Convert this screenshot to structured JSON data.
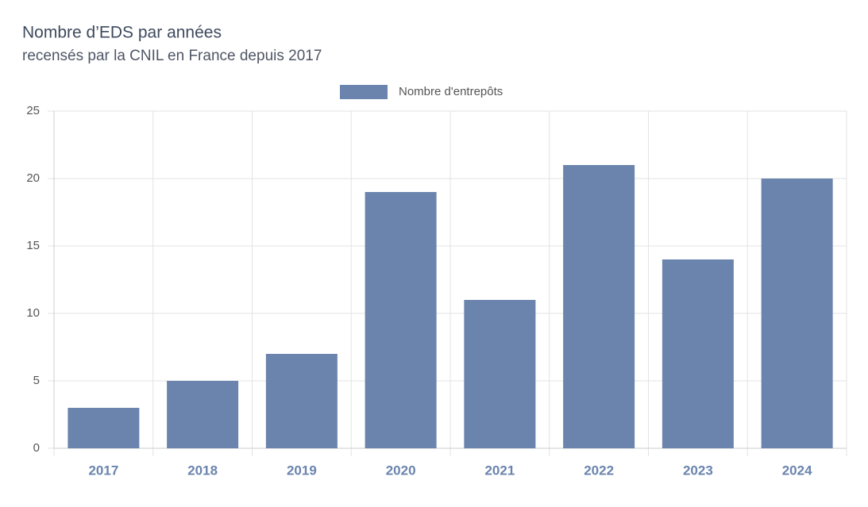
{
  "chart_data": {
    "type": "bar",
    "title": "Nombre d’EDS par années",
    "subtitle": "recensés par la CNIL en France depuis 2017",
    "categories": [
      "2017",
      "2018",
      "2019",
      "2020",
      "2021",
      "2022",
      "2023",
      "2024"
    ],
    "series": [
      {
        "name": "Nombre d'entrepôts",
        "color": "#6a84ad",
        "values": [
          3,
          5,
          7,
          19,
          11,
          21,
          14,
          20
        ]
      }
    ],
    "ylim": [
      0,
      25
    ],
    "yticks": [
      0,
      5,
      10,
      15,
      20,
      25
    ],
    "grid": true,
    "legend": "top"
  }
}
